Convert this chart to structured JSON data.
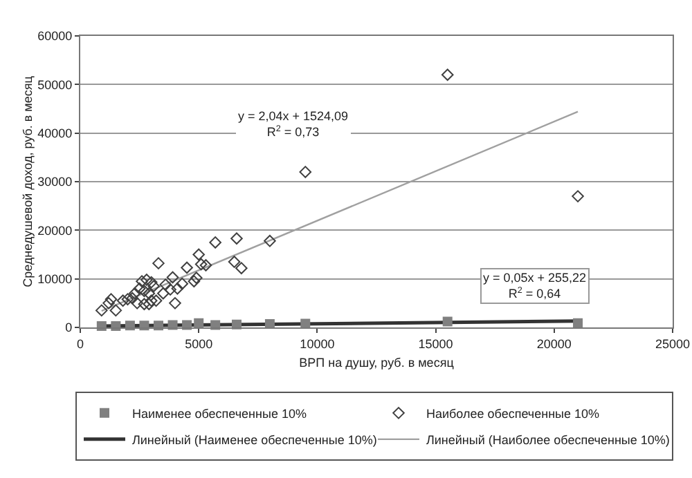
{
  "chart_data": {
    "type": "scatter",
    "xlabel": "ВРП на душу, руб. в месяц",
    "ylabel": "Среднедушевой доход, руб. в месяц",
    "xlim": [
      0,
      25000
    ],
    "xticks": [
      0,
      5000,
      10000,
      15000,
      20000,
      25000
    ],
    "ylim": [
      0,
      60000
    ],
    "yticks": [
      0,
      10000,
      20000,
      30000,
      40000,
      50000,
      60000
    ],
    "grid": "y",
    "legend": "bottom",
    "annotations": [
      "y = 2,04x + 1524,09\nR$^{2}$ = 0,73",
      "y = 0,05x + 255,22\nR$^{2}$ = 0,64"
    ],
    "series": [
      {
        "name": "Наименее обеспеченные 10%",
        "marker": "square",
        "color": "#808080",
        "x": [
          900,
          1500,
          2100,
          2700,
          3300,
          3900,
          4500,
          5000,
          5700,
          6600,
          8000,
          9500,
          15500,
          21000
        ],
        "values": [
          300,
          300,
          400,
          400,
          400,
          500,
          500,
          900,
          500,
          600,
          700,
          800,
          1200,
          900
        ]
      },
      {
        "name": "Наиболее обеспеченные 10%",
        "marker": "diamond",
        "color": "#404040",
        "x": [
          900,
          1200,
          1300,
          1500,
          1800,
          2000,
          2200,
          2300,
          2400,
          2500,
          2600,
          2700,
          2700,
          2800,
          2900,
          2900,
          3000,
          3000,
          3100,
          3200,
          3300,
          3500,
          3600,
          3800,
          3900,
          4000,
          4100,
          4300,
          4500,
          4800,
          4900,
          5000,
          5100,
          5300,
          5700,
          6500,
          6600,
          6800,
          8000,
          9500,
          15500,
          21000
        ],
        "values": [
          3500,
          5000,
          5800,
          3500,
          5500,
          5800,
          6000,
          7000,
          5000,
          8000,
          9500,
          7500,
          4800,
          9800,
          7000,
          4800,
          9300,
          5500,
          8500,
          5500,
          13200,
          7000,
          8800,
          7800,
          10300,
          5000,
          8000,
          9000,
          12300,
          9500,
          10200,
          15000,
          13000,
          12800,
          17500,
          13500,
          18300,
          12200,
          17800,
          32000,
          52000,
          27000
        ]
      },
      {
        "name": "Линейный (Наименее обеспеченные 10%)",
        "type": "line",
        "marker": "none",
        "line_style": "solid",
        "color": "#333333",
        "x": [
          900,
          21000
        ],
        "values": [
          300,
          1300
        ]
      },
      {
        "name": "Линейный (Наиболее обеспеченные 10%)",
        "type": "line",
        "marker": "none",
        "line_style": "solid",
        "color": "#a0a0a0",
        "x": [
          900,
          21000
        ],
        "values": [
          3400,
          44400
        ]
      }
    ]
  }
}
